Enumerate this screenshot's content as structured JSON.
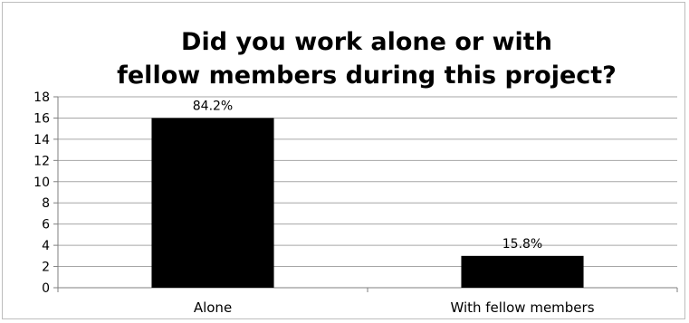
{
  "chart_data": {
    "type": "bar",
    "title_lines": [
      "Did you work alone or with",
      "fellow members during this project?"
    ],
    "categories": [
      "Alone",
      "With fellow members"
    ],
    "values": [
      16,
      3
    ],
    "data_labels": [
      "84.2%",
      "15.8%"
    ],
    "ylim": [
      0,
      18
    ],
    "yticks": [
      0,
      2,
      4,
      6,
      8,
      10,
      12,
      14,
      16,
      18
    ],
    "grid": true,
    "legend": "none",
    "bar_color": "#000000",
    "grid_color": "#a6a6a6"
  }
}
